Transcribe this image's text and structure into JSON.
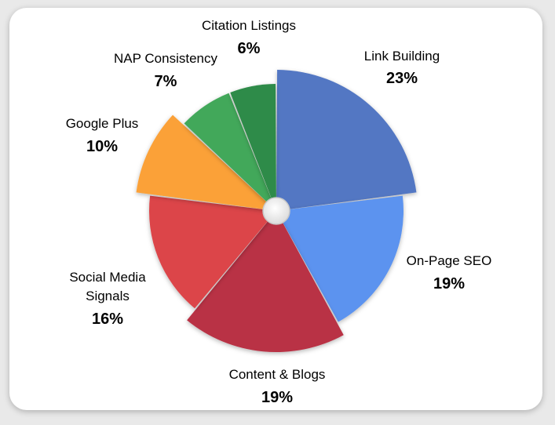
{
  "chart_data": {
    "type": "pie",
    "title": "",
    "legend": "none",
    "slices": [
      {
        "label": "Link Building",
        "lines": [
          "Link Building"
        ],
        "value": 23,
        "value_label": "23%",
        "color": "#5277c3",
        "label_color": "#4a6db8",
        "exploded": true
      },
      {
        "label": "On-Page SEO",
        "lines": [
          "On-Page SEO"
        ],
        "value": 19,
        "value_label": "19%",
        "color": "#5b93ef",
        "label_color": "#4f8ae6",
        "exploded": false
      },
      {
        "label": "Content & Blogs",
        "lines": [
          "Content & Blogs"
        ],
        "value": 19,
        "value_label": "19%",
        "color": "#b93345",
        "label_color": "#a8303f",
        "exploded": true
      },
      {
        "label": "Social Media Signals",
        "lines": [
          "Social Media",
          "Signals"
        ],
        "value": 16,
        "value_label": "16%",
        "color": "#dc4448",
        "label_color": "#c93a40",
        "exploded": false
      },
      {
        "label": "Google Plus",
        "lines": [
          "Google Plus"
        ],
        "value": 10,
        "value_label": "10%",
        "color": "#fba138",
        "label_color": "#f59a2c",
        "exploded": true
      },
      {
        "label": "NAP Consistency",
        "lines": [
          "NAP Consistency"
        ],
        "value": 7,
        "value_label": "7%",
        "color": "#43a85a",
        "label_color": "#2f9a4a",
        "exploded": false
      },
      {
        "label": "Citation Listings",
        "lines": [
          "Citation Listings"
        ],
        "value": 6,
        "value_label": "6%",
        "color": "#2e8b48",
        "label_color": "#2f9a4a",
        "exploded": false
      }
    ]
  }
}
